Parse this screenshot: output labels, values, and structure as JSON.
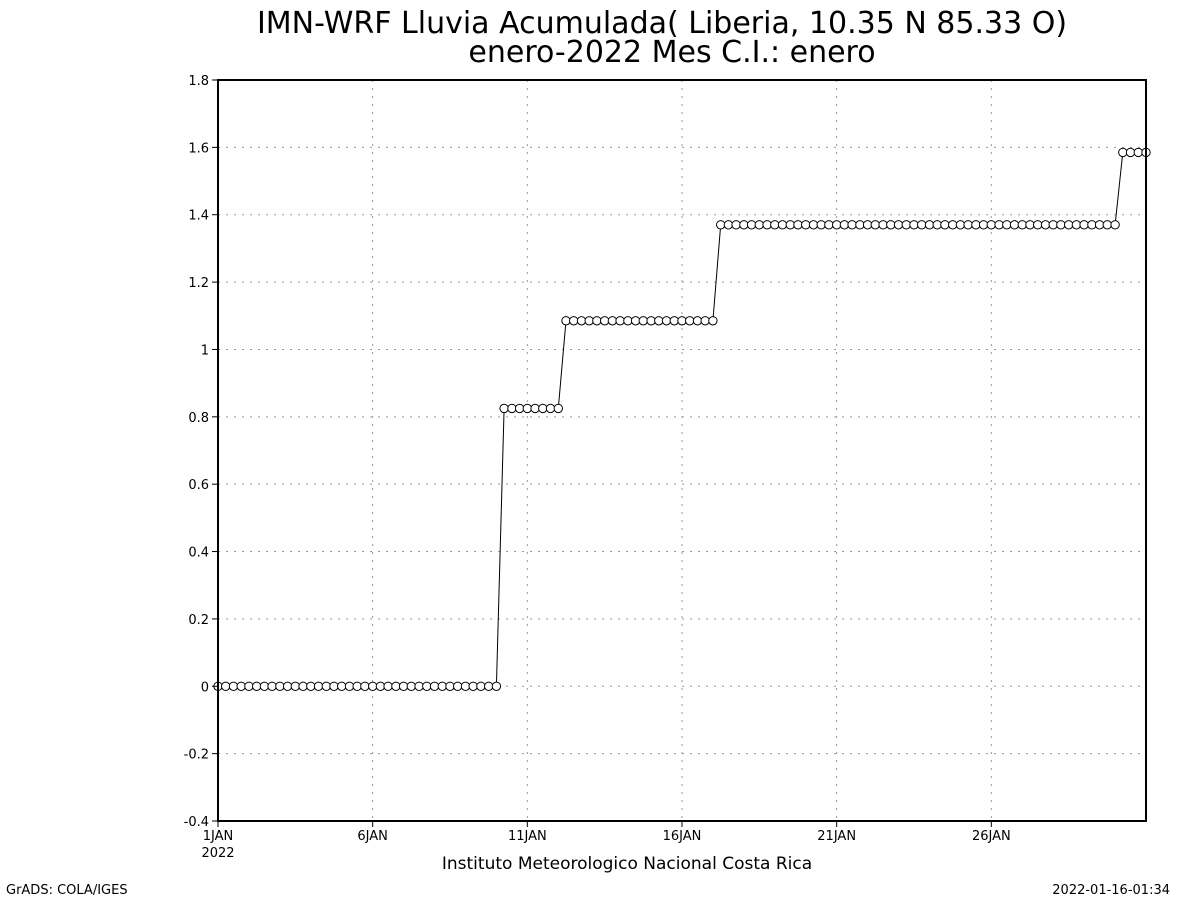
{
  "chart_data": {
    "type": "line",
    "title": "IMN-WRF  Lluvia Acumulada( Liberia, 10.35  N 85.33  O)",
    "subtitle": "enero-2022 Mes C.I.: enero",
    "xlabel": "Instituto Meteorologico Nacional Costa Rica",
    "ylabel": "",
    "ylim": [
      -0.4,
      1.8
    ],
    "xlim": [
      1,
      31
    ],
    "grid": true,
    "marker": "open-circle",
    "yticks": [
      "-0.4",
      "-0.2",
      "0",
      "0.2",
      "0.4",
      "0.6",
      "0.8",
      "1",
      "1.2",
      "1.4",
      "1.6",
      "1.8"
    ],
    "xticks": [
      {
        "value": 1,
        "label": "1JAN",
        "sublabel": "2022"
      },
      {
        "value": 6,
        "label": "6JAN",
        "sublabel": ""
      },
      {
        "value": 11,
        "label": "11JAN",
        "sublabel": ""
      },
      {
        "value": 16,
        "label": "16JAN",
        "sublabel": ""
      },
      {
        "value": 21,
        "label": "21JAN",
        "sublabel": ""
      },
      {
        "value": 26,
        "label": "26JAN",
        "sublabel": ""
      }
    ],
    "series": [
      {
        "steps": [
          {
            "from": 1.0,
            "to": 10.0,
            "value": 0.0
          },
          {
            "from": 10.25,
            "to": 12.0,
            "value": 0.825
          },
          {
            "from": 12.25,
            "to": 17.0,
            "value": 1.085
          },
          {
            "from": 17.25,
            "to": 30.0,
            "value": 1.37
          },
          {
            "from": 30.25,
            "to": 31.0,
            "value": 1.585
          }
        ],
        "interval_days": 0.25
      }
    ]
  },
  "footer": {
    "left": "GrADS: COLA/IGES",
    "right": "2022-01-16-01:34"
  }
}
